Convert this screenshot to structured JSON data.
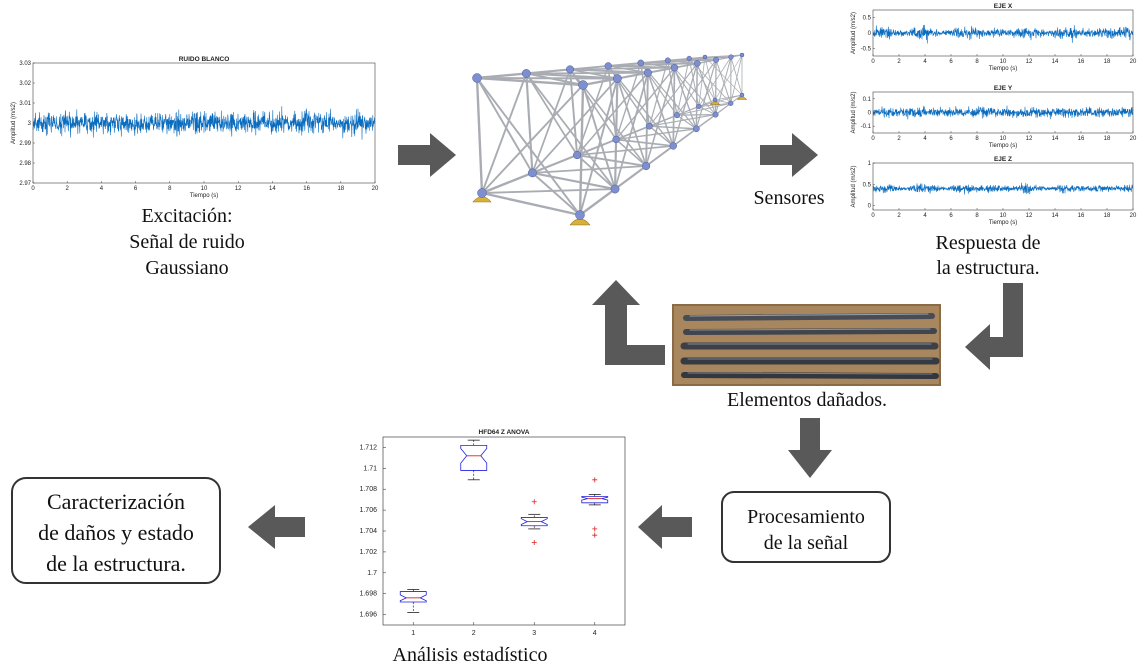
{
  "excitation_plot": {
    "title": "RUIDO BLANCO",
    "x_label": "Tiempo (s)",
    "y_label": "Amplitud (m/s2)",
    "xlim": [
      0,
      20
    ],
    "xticks": [
      0,
      2,
      4,
      6,
      8,
      10,
      12,
      14,
      16,
      18,
      20
    ],
    "ylim": [
      2.97,
      3.03
    ],
    "yticks": [
      2.97,
      2.98,
      2.99,
      3,
      3.01,
      3.02,
      3.03
    ]
  },
  "excitation_caption": [
    "Excitación:",
    "Señal de ruido",
    "Gaussiano"
  ],
  "sensors_label": "Sensores",
  "response_plots": [
    {
      "title": "EJE X",
      "x_label": "Tiempo (s)",
      "y_label": "Amplitud (m/s2)",
      "xlim": [
        0,
        20
      ],
      "xticks": [
        0,
        2,
        4,
        6,
        8,
        10,
        12,
        14,
        16,
        18,
        20
      ],
      "ylim": [
        -0.75,
        0.75
      ],
      "yticks": [
        -0.5,
        0,
        0.5
      ]
    },
    {
      "title": "EJE Y",
      "x_label": "Tiempo (s)",
      "y_label": "Amplitud (m/s2)",
      "xlim": [
        0,
        20
      ],
      "xticks": [
        0,
        2,
        4,
        6,
        8,
        10,
        12,
        14,
        16,
        18,
        20
      ],
      "ylim": [
        -0.15,
        0.15
      ],
      "yticks": [
        -0.1,
        0,
        0.1
      ]
    },
    {
      "title": "EJE Z",
      "x_label": "Tiempo (s)",
      "y_label": "Amplitud (m/s2)",
      "xlim": [
        0,
        20
      ],
      "xticks": [
        0,
        2,
        4,
        6,
        8,
        10,
        12,
        14,
        16,
        18,
        20
      ],
      "ylim": [
        -0.1,
        1
      ],
      "yticks": [
        0,
        0.5,
        1
      ]
    }
  ],
  "response_caption": [
    "Respuesta de",
    "la estructura."
  ],
  "damaged_label": "Elementos dañados.",
  "processing_box": [
    "Procesamiento",
    "de la señal"
  ],
  "boxplot": {
    "title": "HFD64 Z ANOVA",
    "categories": [
      "1",
      "2",
      "3",
      "4"
    ],
    "ylim": [
      1.695,
      1.713
    ],
    "yticks": [
      1.696,
      1.698,
      1.7,
      1.702,
      1.704,
      1.706,
      1.708,
      1.71,
      1.712
    ],
    "boxes": [
      {
        "low": 1.6962,
        "q1": 1.6972,
        "median": 1.6976,
        "q3": 1.6982,
        "high": 1.6984,
        "outliers": []
      },
      {
        "low": 1.7089,
        "q1": 1.7098,
        "median": 1.7112,
        "q3": 1.7122,
        "high": 1.7127,
        "outliers": []
      },
      {
        "low": 1.7042,
        "q1": 1.7045,
        "median": 1.7049,
        "q3": 1.7053,
        "high": 1.7056,
        "outliers": [
          1.7068,
          1.7029
        ]
      },
      {
        "low": 1.7065,
        "q1": 1.7067,
        "median": 1.7071,
        "q3": 1.7073,
        "high": 1.7075,
        "outliers": [
          1.7089,
          1.7042,
          1.7036
        ]
      }
    ]
  },
  "statistics_caption": "Análisis estadístico",
  "result_box": [
    "Caracterización",
    "de daños y estado",
    "de la estructura."
  ]
}
